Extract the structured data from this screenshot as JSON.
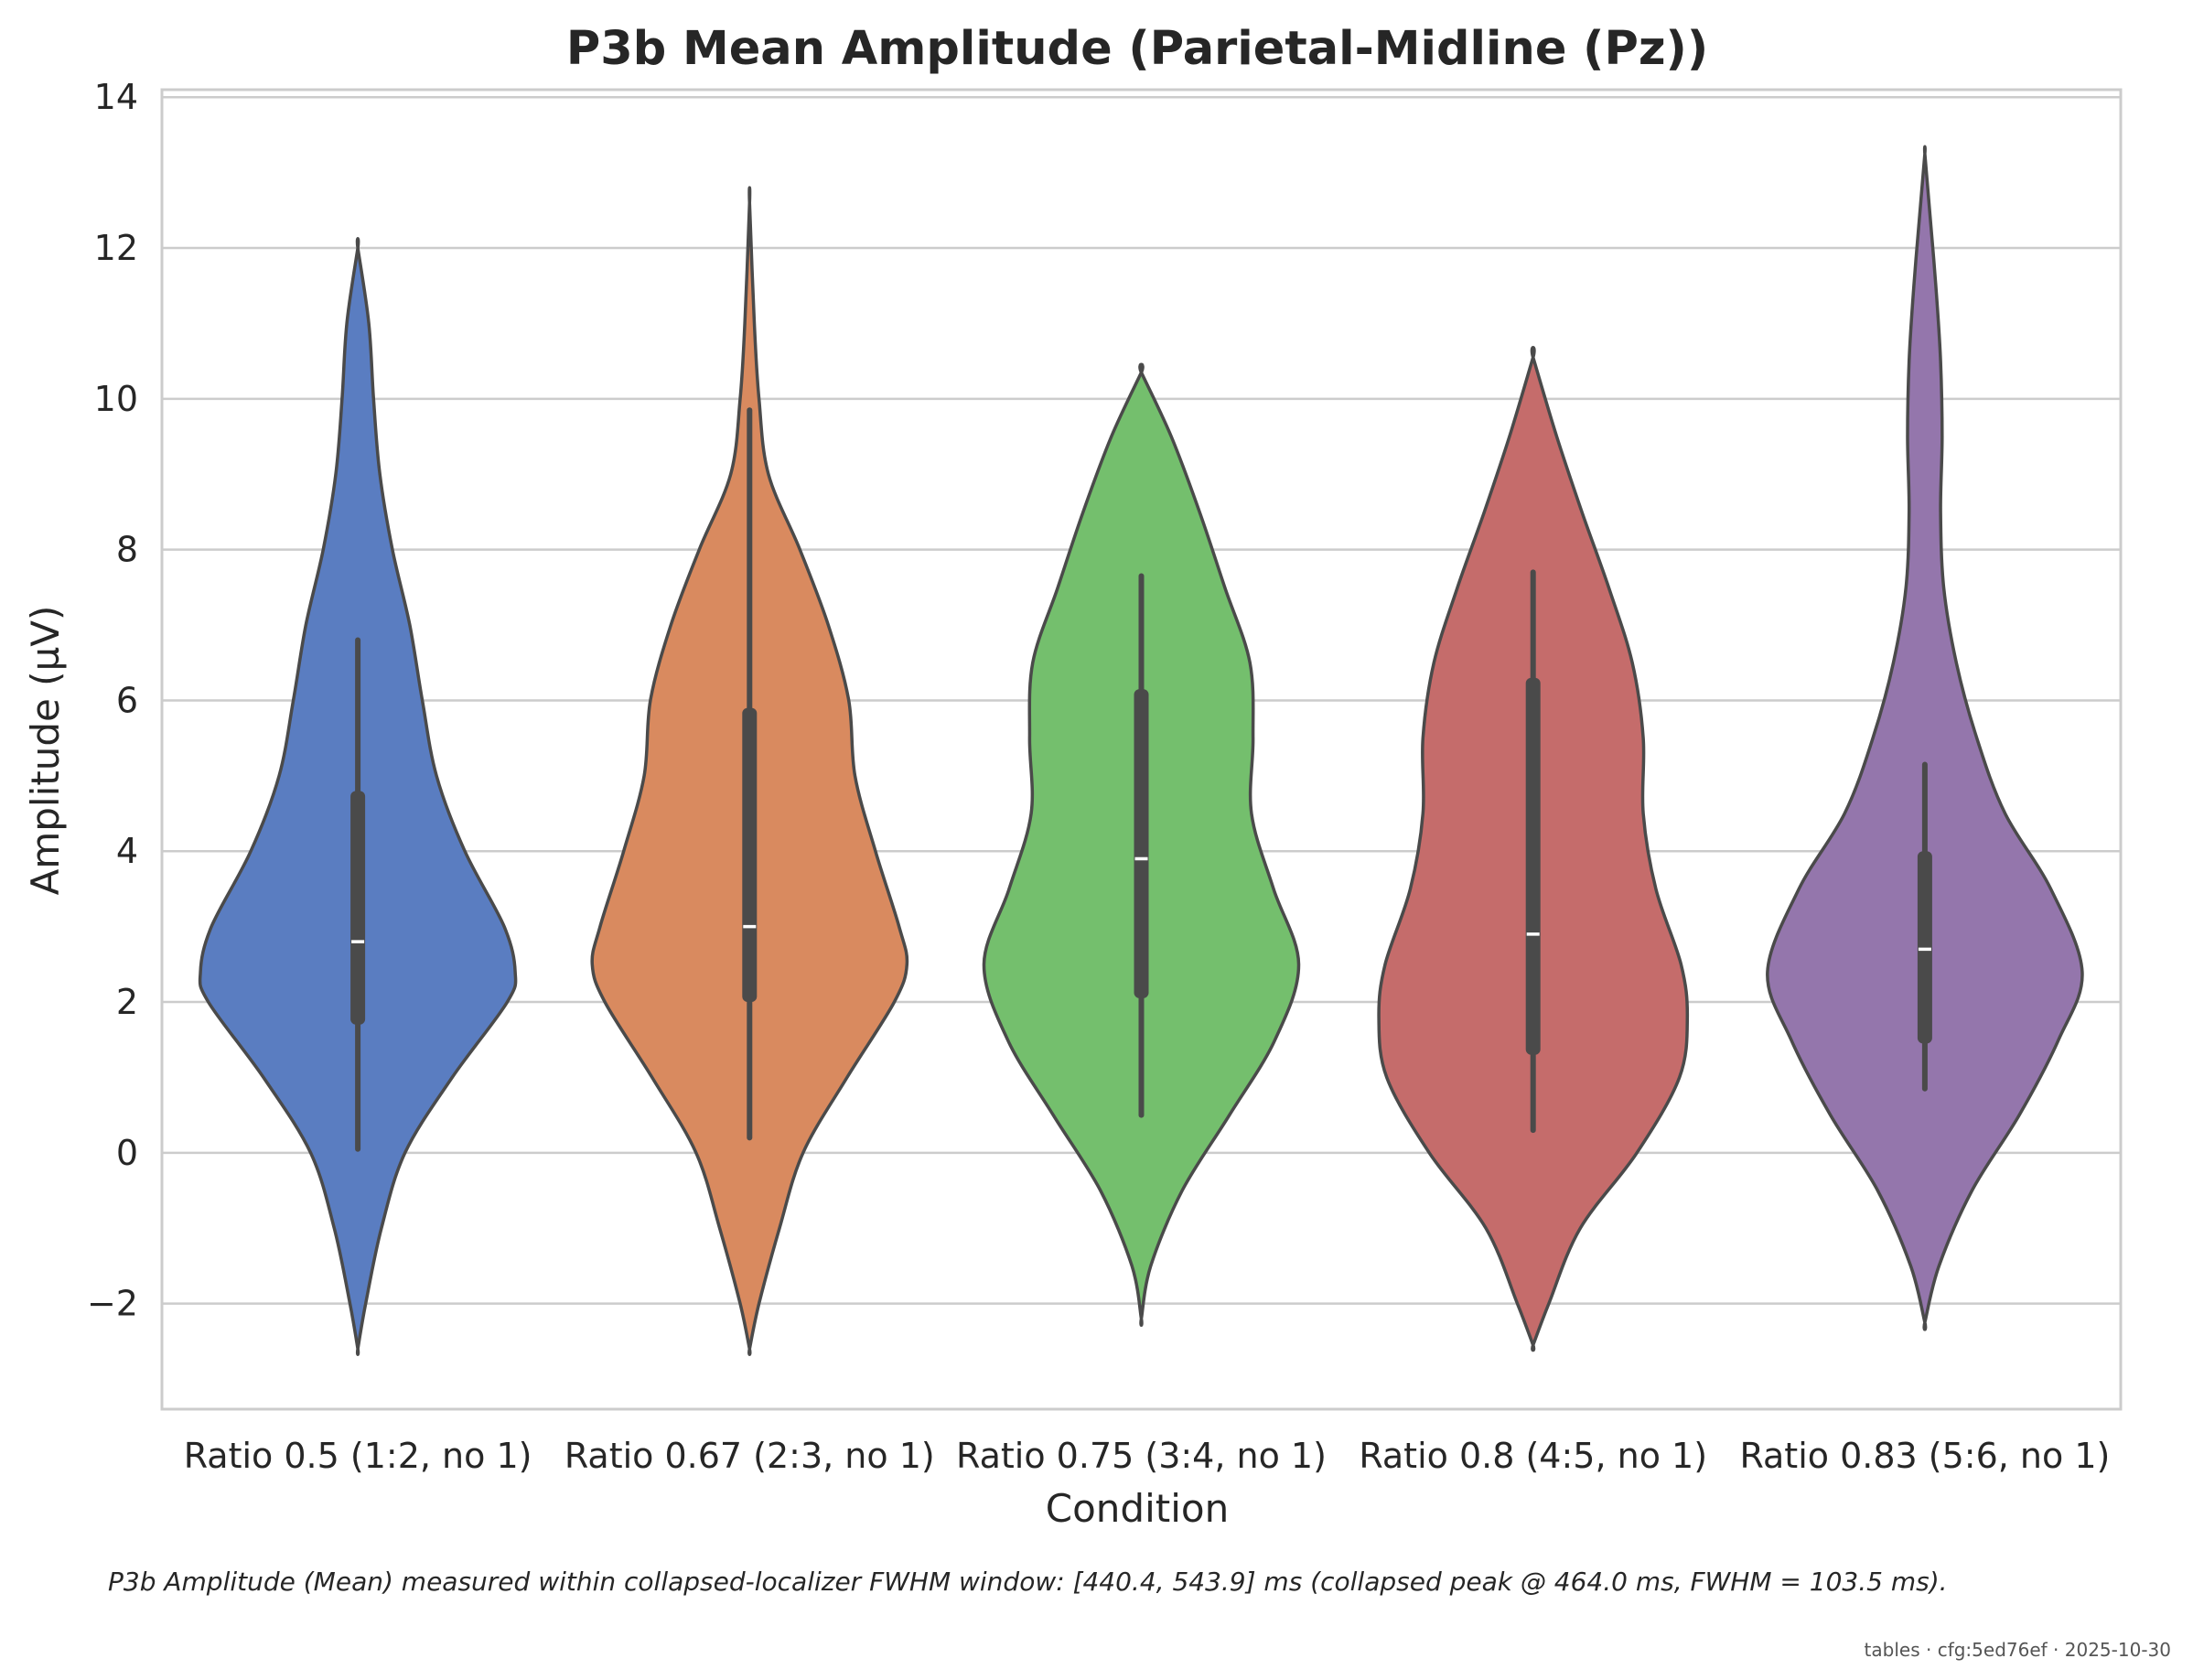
{
  "chart_data": {
    "type": "violin",
    "title": "P3b Mean Amplitude (Parietal-Midline (Pz))",
    "xlabel": "Condition",
    "ylabel": "Amplitude (µV)",
    "ylim": [
      -3.4,
      14.1
    ],
    "yticks": [
      -2,
      0,
      2,
      4,
      6,
      8,
      10,
      12,
      14
    ],
    "ytick_labels": [
      "−2",
      "0",
      "2",
      "4",
      "6",
      "8",
      "10",
      "12",
      "14"
    ],
    "grid": true,
    "categories": [
      "Ratio 0.5 (1:2, no 1)",
      "Ratio 0.67 (2:3, no 1)",
      "Ratio 0.75 (3:4, no 1)",
      "Ratio 0.8 (4:5, no 1)",
      "Ratio 0.83 (5:6, no 1)"
    ],
    "series": [
      {
        "color": "#5a7dc1",
        "min": -2.6,
        "max": 12.0,
        "whisker_low": 0.05,
        "whisker_high": 6.8,
        "q1": 1.7,
        "median": 2.8,
        "q3": 4.8,
        "density": [
          [
            -2.6,
            0.0
          ],
          [
            -2.0,
            0.05
          ],
          [
            -1.0,
            0.15
          ],
          [
            0.0,
            0.3
          ],
          [
            1.0,
            0.6
          ],
          [
            2.0,
            0.95
          ],
          [
            2.4,
            1.0
          ],
          [
            3.0,
            0.93
          ],
          [
            4.0,
            0.68
          ],
          [
            5.0,
            0.5
          ],
          [
            6.0,
            0.41
          ],
          [
            7.0,
            0.33
          ],
          [
            8.0,
            0.22
          ],
          [
            9.0,
            0.14
          ],
          [
            10.0,
            0.1
          ],
          [
            11.0,
            0.07
          ],
          [
            12.0,
            0.0
          ]
        ]
      },
      {
        "color": "#d98a5f",
        "min": -2.6,
        "max": 12.6,
        "whisker_low": 0.2,
        "whisker_high": 9.85,
        "q1": 2.0,
        "median": 3.0,
        "q3": 5.9,
        "density": [
          [
            -2.6,
            0.0
          ],
          [
            -2.0,
            0.06
          ],
          [
            -1.0,
            0.19
          ],
          [
            0.0,
            0.34
          ],
          [
            1.0,
            0.62
          ],
          [
            2.0,
            0.92
          ],
          [
            2.5,
            1.0
          ],
          [
            3.0,
            0.95
          ],
          [
            4.0,
            0.8
          ],
          [
            5.0,
            0.67
          ],
          [
            6.0,
            0.63
          ],
          [
            7.0,
            0.5
          ],
          [
            8.0,
            0.32
          ],
          [
            9.0,
            0.12
          ],
          [
            10.0,
            0.06
          ],
          [
            11.0,
            0.03
          ],
          [
            12.6,
            0.0
          ]
        ]
      },
      {
        "color": "#74bf6d",
        "min": -2.2,
        "max": 10.35,
        "whisker_low": 0.5,
        "whisker_high": 7.65,
        "q1": 2.05,
        "median": 3.9,
        "q3": 6.15,
        "density": [
          [
            -2.2,
            0.0
          ],
          [
            -1.5,
            0.06
          ],
          [
            -0.5,
            0.26
          ],
          [
            0.5,
            0.56
          ],
          [
            1.5,
            0.85
          ],
          [
            2.5,
            1.0
          ],
          [
            3.5,
            0.84
          ],
          [
            4.5,
            0.7
          ],
          [
            5.5,
            0.71
          ],
          [
            6.5,
            0.69
          ],
          [
            7.5,
            0.53
          ],
          [
            8.5,
            0.37
          ],
          [
            9.5,
            0.19
          ],
          [
            10.35,
            0.0
          ]
        ]
      },
      {
        "color": "#c56c6b",
        "min": -2.55,
        "max": 10.55,
        "whisker_low": 0.3,
        "whisker_high": 7.7,
        "q1": 1.3,
        "median": 2.9,
        "q3": 6.3,
        "density": [
          [
            -2.55,
            0.0
          ],
          [
            -2.0,
            0.1
          ],
          [
            -1.0,
            0.3
          ],
          [
            0.0,
            0.66
          ],
          [
            1.0,
            0.93
          ],
          [
            1.8,
            0.98
          ],
          [
            2.5,
            0.94
          ],
          [
            3.5,
            0.78
          ],
          [
            4.5,
            0.7
          ],
          [
            5.5,
            0.7
          ],
          [
            6.5,
            0.63
          ],
          [
            7.5,
            0.48
          ],
          [
            8.5,
            0.31
          ],
          [
            9.5,
            0.15
          ],
          [
            10.55,
            0.0
          ]
        ]
      },
      {
        "color": "#9476ac",
        "min": -2.25,
        "max": 13.25,
        "whisker_low": 0.85,
        "whisker_high": 5.15,
        "q1": 1.45,
        "median": 2.7,
        "q3": 4.0,
        "density": [
          [
            -2.25,
            0.0
          ],
          [
            -1.5,
            0.09
          ],
          [
            -0.5,
            0.3
          ],
          [
            0.5,
            0.6
          ],
          [
            1.5,
            0.85
          ],
          [
            2.4,
            1.0
          ],
          [
            3.5,
            0.8
          ],
          [
            4.5,
            0.51
          ],
          [
            5.5,
            0.33
          ],
          [
            6.5,
            0.2
          ],
          [
            7.5,
            0.12
          ],
          [
            8.5,
            0.1
          ],
          [
            9.5,
            0.11
          ],
          [
            10.5,
            0.1
          ],
          [
            11.5,
            0.07
          ],
          [
            12.5,
            0.03
          ],
          [
            13.25,
            0.0
          ]
        ]
      }
    ],
    "footnote": "P3b Amplitude (Mean) measured within collapsed-localizer FWHM window: [440.4, 543.9] ms (collapsed peak @ 464.0 ms, FWHM = 103.5 ms).",
    "stamp": "tables · cfg:5ed76ef · 2025-10-30"
  },
  "colors": {
    "grid": "#cccccc",
    "frame": "#cccccc",
    "outline": "#4a4a4a",
    "box": "#4a4a4a",
    "median": "#ffffff"
  }
}
